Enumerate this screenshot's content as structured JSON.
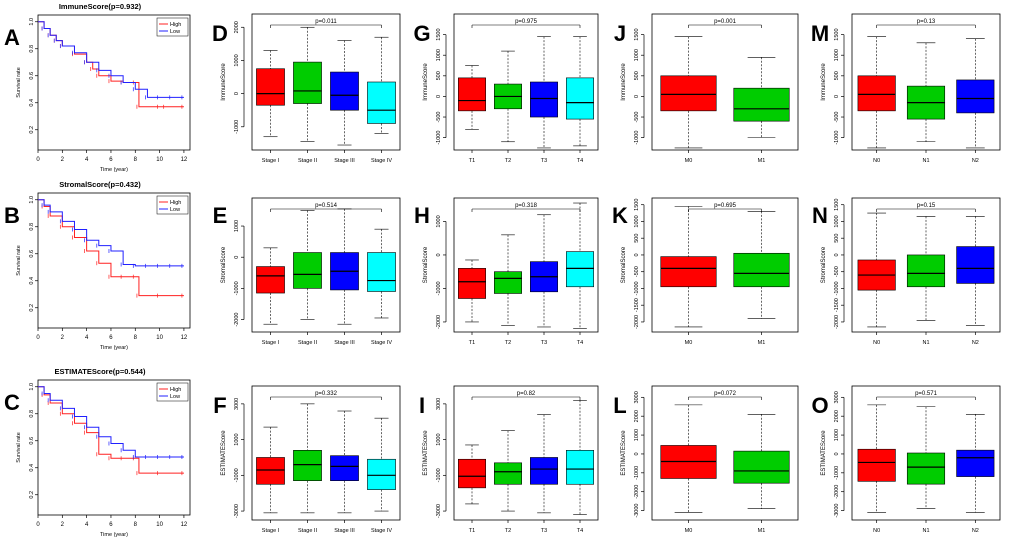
{
  "figure": {
    "colors": {
      "red": "#ff0000",
      "green": "#00cc00",
      "blue": "#0000ff",
      "cyan": "#00ffff",
      "high": "#ff2020",
      "low": "#2020ff"
    },
    "km_panels": [
      {
        "letter": "A",
        "title": "ImmuneScore(p=0.932)",
        "legend_pos": "top-right",
        "curves": "immune"
      },
      {
        "letter": "B",
        "title": "StromalScore(p=0.432)",
        "legend_pos": "top-right",
        "curves": "stromal"
      },
      {
        "letter": "C",
        "title": "ESTIMATEScore(p=0.544)",
        "legend_pos": "top-right",
        "curves": "estimate"
      }
    ],
    "km_common": {
      "ylabel": "Survival rate",
      "xlabel": "Time (year)",
      "xticks": [
        "0",
        "2",
        "4",
        "6",
        "8",
        "10",
        "12"
      ],
      "yticks": [
        "0.2",
        "0.4",
        "0.6",
        "0.8",
        "1.0"
      ],
      "legend": [
        "High",
        "Low"
      ]
    },
    "box_panels": [
      {
        "letter": "D",
        "ylabel": "ImmuneScore",
        "p": "p=0.011",
        "cats": [
          "Stage I",
          "Stage II",
          "Stage III",
          "Stage IV"
        ],
        "yticks": [
          -1000,
          0,
          1000,
          2000
        ],
        "ylim": [
          -1700,
          2400
        ]
      },
      {
        "letter": "G",
        "ylabel": "ImmuneScore",
        "p": "p=0.975",
        "cats": [
          "T1",
          "T2",
          "T3",
          "T4"
        ],
        "yticks": [
          -1000,
          -500,
          0,
          500,
          1000,
          1500
        ],
        "ylim": [
          -1300,
          2000
        ]
      },
      {
        "letter": "J",
        "ylabel": "ImmuneScore",
        "p": "p=0.001",
        "cats": [
          "M0",
          "M1"
        ],
        "yticks": [
          -1000,
          -500,
          0,
          500,
          1000,
          1500
        ],
        "ylim": [
          -1300,
          2000
        ]
      },
      {
        "letter": "M",
        "ylabel": "ImmuneScore",
        "p": "p=0.13",
        "cats": [
          "N0",
          "N1",
          "N2"
        ],
        "yticks": [
          -1000,
          -500,
          0,
          500,
          1000,
          1500
        ],
        "ylim": [
          -1300,
          2000
        ]
      },
      {
        "letter": "E",
        "ylabel": "StromalScore",
        "p": "p=0.514",
        "cats": [
          "Stage I",
          "Stage II",
          "Stage III",
          "Stage IV"
        ],
        "yticks": [
          -2000,
          -1000,
          0,
          1000
        ],
        "ylim": [
          -2400,
          1900
        ]
      },
      {
        "letter": "H",
        "ylabel": "StromalScore",
        "p": "p=0.318",
        "cats": [
          "T1",
          "T2",
          "T3",
          "T4"
        ],
        "yticks": [
          -2000,
          -1000,
          0,
          1000
        ],
        "ylim": [
          -2300,
          1700
        ]
      },
      {
        "letter": "K",
        "ylabel": "StromalScore",
        "p": "p=0.695",
        "cats": [
          "M0",
          "M1"
        ],
        "yticks": [
          -2000,
          -1500,
          -1000,
          -500,
          0,
          500,
          1000,
          1500
        ],
        "ylim": [
          -2300,
          1700
        ]
      },
      {
        "letter": "N",
        "ylabel": "StromalScore",
        "p": "p=0.15",
        "cats": [
          "N0",
          "N1",
          "N2"
        ],
        "yticks": [
          -2000,
          -1500,
          -1000,
          -500,
          0,
          500,
          1000,
          1500
        ],
        "ylim": [
          -2300,
          1700
        ]
      },
      {
        "letter": "F",
        "ylabel": "ESTIMATEScore",
        "p": "p=0.332",
        "cats": [
          "Stage I",
          "Stage II",
          "Stage III",
          "Stage IV"
        ],
        "yticks": [
          -3000,
          -1000,
          1000,
          3000
        ],
        "ylim": [
          -3500,
          4000
        ]
      },
      {
        "letter": "I",
        "ylabel": "ESTIMATEScore",
        "p": "p=0.82",
        "cats": [
          "T1",
          "T2",
          "T3",
          "T4"
        ],
        "yticks": [
          -3000,
          -1000,
          1000,
          3000
        ],
        "ylim": [
          -3500,
          4000
        ]
      },
      {
        "letter": "L",
        "ylabel": "ESTIMATEScore",
        "p": "p=0.072",
        "cats": [
          "M0",
          "M1"
        ],
        "yticks": [
          -3000,
          -2000,
          -1000,
          0,
          1000,
          2000,
          3000
        ],
        "ylim": [
          -3500,
          3600
        ]
      },
      {
        "letter": "O",
        "ylabel": "ESTIMATEScore",
        "p": "p=0.571",
        "cats": [
          "N0",
          "N1",
          "N2"
        ],
        "yticks": [
          -3000,
          -2000,
          -1000,
          0,
          1000,
          2000,
          3000
        ],
        "ylim": [
          -3500,
          3600
        ]
      }
    ]
  },
  "chart_data": [
    {
      "type": "line",
      "panel": "A",
      "title": "ImmuneScore(p=0.932)",
      "xlabel": "Time (year)",
      "ylabel": "Survival rate",
      "xlim": [
        0,
        12.5
      ],
      "ylim": [
        0.05,
        1.05
      ],
      "series": [
        {
          "name": "High",
          "x": [
            0,
            0.5,
            1,
            1.5,
            2,
            3,
            4,
            4.5,
            5,
            6,
            7,
            8,
            8.3,
            10,
            10.5,
            12
          ],
          "y": [
            1,
            0.95,
            0.9,
            0.86,
            0.82,
            0.76,
            0.7,
            0.65,
            0.6,
            0.56,
            0.55,
            0.55,
            0.37,
            0.37,
            0.37,
            0.37
          ]
        },
        {
          "name": "Low",
          "x": [
            0,
            0.5,
            1,
            1.5,
            2,
            3,
            4,
            5,
            6,
            7,
            8,
            9,
            10,
            11,
            12
          ],
          "y": [
            1,
            0.95,
            0.9,
            0.86,
            0.82,
            0.77,
            0.7,
            0.64,
            0.6,
            0.55,
            0.5,
            0.44,
            0.44,
            0.44,
            0.44
          ]
        }
      ]
    },
    {
      "type": "line",
      "panel": "B",
      "title": "StromalScore(p=0.432)",
      "xlabel": "Time (year)",
      "ylabel": "Survival rate",
      "xlim": [
        0,
        12.5
      ],
      "ylim": [
        0.05,
        1.05
      ],
      "series": [
        {
          "name": "High",
          "x": [
            0,
            0.5,
            1,
            2,
            3,
            4,
            5,
            6,
            7,
            8,
            8.3,
            10,
            12
          ],
          "y": [
            1,
            0.95,
            0.88,
            0.8,
            0.72,
            0.62,
            0.53,
            0.43,
            0.43,
            0.43,
            0.29,
            0.29,
            0.29
          ]
        },
        {
          "name": "Low",
          "x": [
            0,
            0.5,
            1,
            2,
            3,
            4,
            5,
            6,
            7,
            8,
            9,
            10,
            11,
            12
          ],
          "y": [
            1,
            0.96,
            0.91,
            0.84,
            0.78,
            0.7,
            0.66,
            0.62,
            0.52,
            0.51,
            0.51,
            0.51,
            0.51,
            0.51
          ]
        }
      ]
    },
    {
      "type": "line",
      "panel": "C",
      "title": "ESTIMATEScore(p=0.544)",
      "xlabel": "Time (year)",
      "ylabel": "Survival rate",
      "xlim": [
        0,
        12.5
      ],
      "ylim": [
        0.05,
        1.05
      ],
      "series": [
        {
          "name": "High",
          "x": [
            0,
            0.5,
            1,
            2,
            3,
            4,
            5,
            6,
            7,
            8,
            8.3,
            10,
            12
          ],
          "y": [
            1,
            0.94,
            0.88,
            0.8,
            0.73,
            0.66,
            0.5,
            0.47,
            0.47,
            0.47,
            0.36,
            0.36,
            0.36
          ]
        },
        {
          "name": "Low",
          "x": [
            0,
            0.5,
            1,
            2,
            3,
            4,
            5,
            6,
            7,
            8,
            9,
            10,
            11,
            12
          ],
          "y": [
            1,
            0.95,
            0.9,
            0.84,
            0.78,
            0.7,
            0.63,
            0.58,
            0.53,
            0.48,
            0.48,
            0.48,
            0.48,
            0.48
          ]
        }
      ]
    },
    {
      "type": "box",
      "panel": "D",
      "ylabel": "ImmuneScore",
      "annotation": "p=0.011",
      "categories": [
        "Stage I",
        "Stage II",
        "Stage III",
        "Stage IV"
      ],
      "boxes": [
        {
          "min": -1300,
          "q1": -350,
          "median": 0,
          "q3": 750,
          "max": 1300,
          "color": "#ff0000"
        },
        {
          "min": -1450,
          "q1": -300,
          "median": 80,
          "q3": 950,
          "max": 2000,
          "color": "#00cc00"
        },
        {
          "min": -1550,
          "q1": -500,
          "median": -50,
          "q3": 650,
          "max": 1600,
          "color": "#0000ff"
        },
        {
          "min": -1200,
          "q1": -900,
          "median": -500,
          "q3": 350,
          "max": 1700,
          "color": "#00ffff"
        }
      ]
    },
    {
      "type": "box",
      "panel": "G",
      "ylabel": "ImmuneScore",
      "annotation": "p=0.975",
      "categories": [
        "T1",
        "T2",
        "T3",
        "T4"
      ],
      "boxes": [
        {
          "min": -800,
          "q1": -350,
          "median": -100,
          "q3": 450,
          "max": 750,
          "color": "#ff0000"
        },
        {
          "min": -1100,
          "q1": -300,
          "median": 0,
          "q3": 300,
          "max": 1100,
          "color": "#00cc00"
        },
        {
          "min": -1250,
          "q1": -500,
          "median": -50,
          "q3": 350,
          "max": 1450,
          "color": "#0000ff"
        },
        {
          "min": -1200,
          "q1": -550,
          "median": -150,
          "q3": 450,
          "max": 1450,
          "color": "#00ffff"
        }
      ]
    },
    {
      "type": "box",
      "panel": "J",
      "ylabel": "ImmuneScore",
      "annotation": "p=0.001",
      "categories": [
        "M0",
        "M1"
      ],
      "boxes": [
        {
          "min": -1250,
          "q1": -350,
          "median": 50,
          "q3": 500,
          "max": 1450,
          "color": "#ff0000"
        },
        {
          "min": -1000,
          "q1": -600,
          "median": -300,
          "q3": 200,
          "max": 950,
          "color": "#00cc00"
        }
      ]
    },
    {
      "type": "box",
      "panel": "M",
      "ylabel": "ImmuneScore",
      "annotation": "p=0.13",
      "categories": [
        "N0",
        "N1",
        "N2"
      ],
      "boxes": [
        {
          "min": -1250,
          "q1": -350,
          "median": 50,
          "q3": 500,
          "max": 1450,
          "color": "#ff0000"
        },
        {
          "min": -1100,
          "q1": -550,
          "median": -150,
          "q3": 250,
          "max": 1300,
          "color": "#00cc00"
        },
        {
          "min": -1250,
          "q1": -400,
          "median": -50,
          "q3": 400,
          "max": 1400,
          "color": "#0000ff"
        }
      ]
    },
    {
      "type": "box",
      "panel": "E",
      "ylabel": "StromalScore",
      "annotation": "p=0.514",
      "categories": [
        "Stage I",
        "Stage II",
        "Stage III",
        "Stage IV"
      ],
      "boxes": [
        {
          "min": -2150,
          "q1": -1150,
          "median": -600,
          "q3": -300,
          "max": 300,
          "color": "#ff0000"
        },
        {
          "min": -2000,
          "q1": -1000,
          "median": -550,
          "q3": 150,
          "max": 1500,
          "color": "#00cc00"
        },
        {
          "min": -2150,
          "q1": -1050,
          "median": -450,
          "q3": 150,
          "max": 1550,
          "color": "#0000ff"
        },
        {
          "min": -1950,
          "q1": -1100,
          "median": -750,
          "q3": 150,
          "max": 900,
          "color": "#00ffff"
        }
      ]
    },
    {
      "type": "box",
      "panel": "H",
      "ylabel": "StromalScore",
      "annotation": "p=0.318",
      "categories": [
        "T1",
        "T2",
        "T3",
        "T4"
      ],
      "boxes": [
        {
          "min": -2000,
          "q1": -1300,
          "median": -800,
          "q3": -400,
          "max": -150,
          "color": "#ff0000"
        },
        {
          "min": -2100,
          "q1": -1150,
          "median": -700,
          "q3": -500,
          "max": 600,
          "color": "#00cc00"
        },
        {
          "min": -2150,
          "q1": -1100,
          "median": -650,
          "q3": -200,
          "max": 1200,
          "color": "#0000ff"
        },
        {
          "min": -2200,
          "q1": -950,
          "median": -400,
          "q3": 100,
          "max": 1550,
          "color": "#00ffff"
        }
      ]
    },
    {
      "type": "box",
      "panel": "K",
      "ylabel": "StromalScore",
      "annotation": "p=0.695",
      "categories": [
        "M0",
        "M1"
      ],
      "boxes": [
        {
          "min": -2150,
          "q1": -950,
          "median": -400,
          "q3": -50,
          "max": 1450,
          "color": "#ff0000"
        },
        {
          "min": -1900,
          "q1": -950,
          "median": -550,
          "q3": 50,
          "max": 1300,
          "color": "#00cc00"
        }
      ]
    },
    {
      "type": "box",
      "panel": "N",
      "ylabel": "StromalScore",
      "annotation": "p=0.15",
      "categories": [
        "N0",
        "N1",
        "N2"
      ],
      "boxes": [
        {
          "min": -2150,
          "q1": -1050,
          "median": -600,
          "q3": -150,
          "max": 1250,
          "color": "#ff0000"
        },
        {
          "min": -1950,
          "q1": -950,
          "median": -550,
          "q3": 0,
          "max": 1150,
          "color": "#00cc00"
        },
        {
          "min": -2100,
          "q1": -850,
          "median": -400,
          "q3": 250,
          "max": 1150,
          "color": "#0000ff"
        }
      ]
    },
    {
      "type": "box",
      "panel": "F",
      "ylabel": "ESTIMATEScore",
      "annotation": "p=0.332",
      "categories": [
        "Stage I",
        "Stage II",
        "Stage III",
        "Stage IV"
      ],
      "boxes": [
        {
          "min": -3100,
          "q1": -1500,
          "median": -700,
          "q3": 0,
          "max": 1700,
          "color": "#ff0000"
        },
        {
          "min": -3100,
          "q1": -1300,
          "median": -400,
          "q3": 400,
          "max": 3000,
          "color": "#00cc00"
        },
        {
          "min": -3100,
          "q1": -1300,
          "median": -500,
          "q3": 100,
          "max": 2600,
          "color": "#0000ff"
        },
        {
          "min": -3000,
          "q1": -1800,
          "median": -1000,
          "q3": -100,
          "max": 2200,
          "color": "#00ffff"
        }
      ]
    },
    {
      "type": "box",
      "panel": "I",
      "ylabel": "ESTIMATEScore",
      "annotation": "p=0.82",
      "categories": [
        "T1",
        "T2",
        "T3",
        "T4"
      ],
      "boxes": [
        {
          "min": -2600,
          "q1": -1700,
          "median": -1050,
          "q3": -100,
          "max": 700,
          "color": "#ff0000"
        },
        {
          "min": -3000,
          "q1": -1500,
          "median": -800,
          "q3": -300,
          "max": 1500,
          "color": "#00cc00"
        },
        {
          "min": -3100,
          "q1": -1500,
          "median": -650,
          "q3": 0,
          "max": 2400,
          "color": "#0000ff"
        },
        {
          "min": -3200,
          "q1": -1500,
          "median": -650,
          "q3": 400,
          "max": 3200,
          "color": "#00ffff"
        }
      ]
    },
    {
      "type": "box",
      "panel": "L",
      "ylabel": "ESTIMATEScore",
      "annotation": "p=0.072",
      "categories": [
        "M0",
        "M1"
      ],
      "boxes": [
        {
          "min": -3100,
          "q1": -1300,
          "median": -400,
          "q3": 450,
          "max": 2600,
          "color": "#ff0000"
        },
        {
          "min": -2900,
          "q1": -1550,
          "median": -900,
          "q3": 150,
          "max": 2100,
          "color": "#00cc00"
        }
      ]
    },
    {
      "type": "box",
      "panel": "O",
      "ylabel": "ESTIMATEScore",
      "annotation": "p=0.571",
      "categories": [
        "N0",
        "N1",
        "N2"
      ],
      "boxes": [
        {
          "min": -3100,
          "q1": -1450,
          "median": -450,
          "q3": 250,
          "max": 2600,
          "color": "#ff0000"
        },
        {
          "min": -2900,
          "q1": -1600,
          "median": -700,
          "q3": 50,
          "max": 2500,
          "color": "#00cc00"
        },
        {
          "min": -3100,
          "q1": -1200,
          "median": -200,
          "q3": 200,
          "max": 2100,
          "color": "#0000ff"
        }
      ]
    }
  ]
}
